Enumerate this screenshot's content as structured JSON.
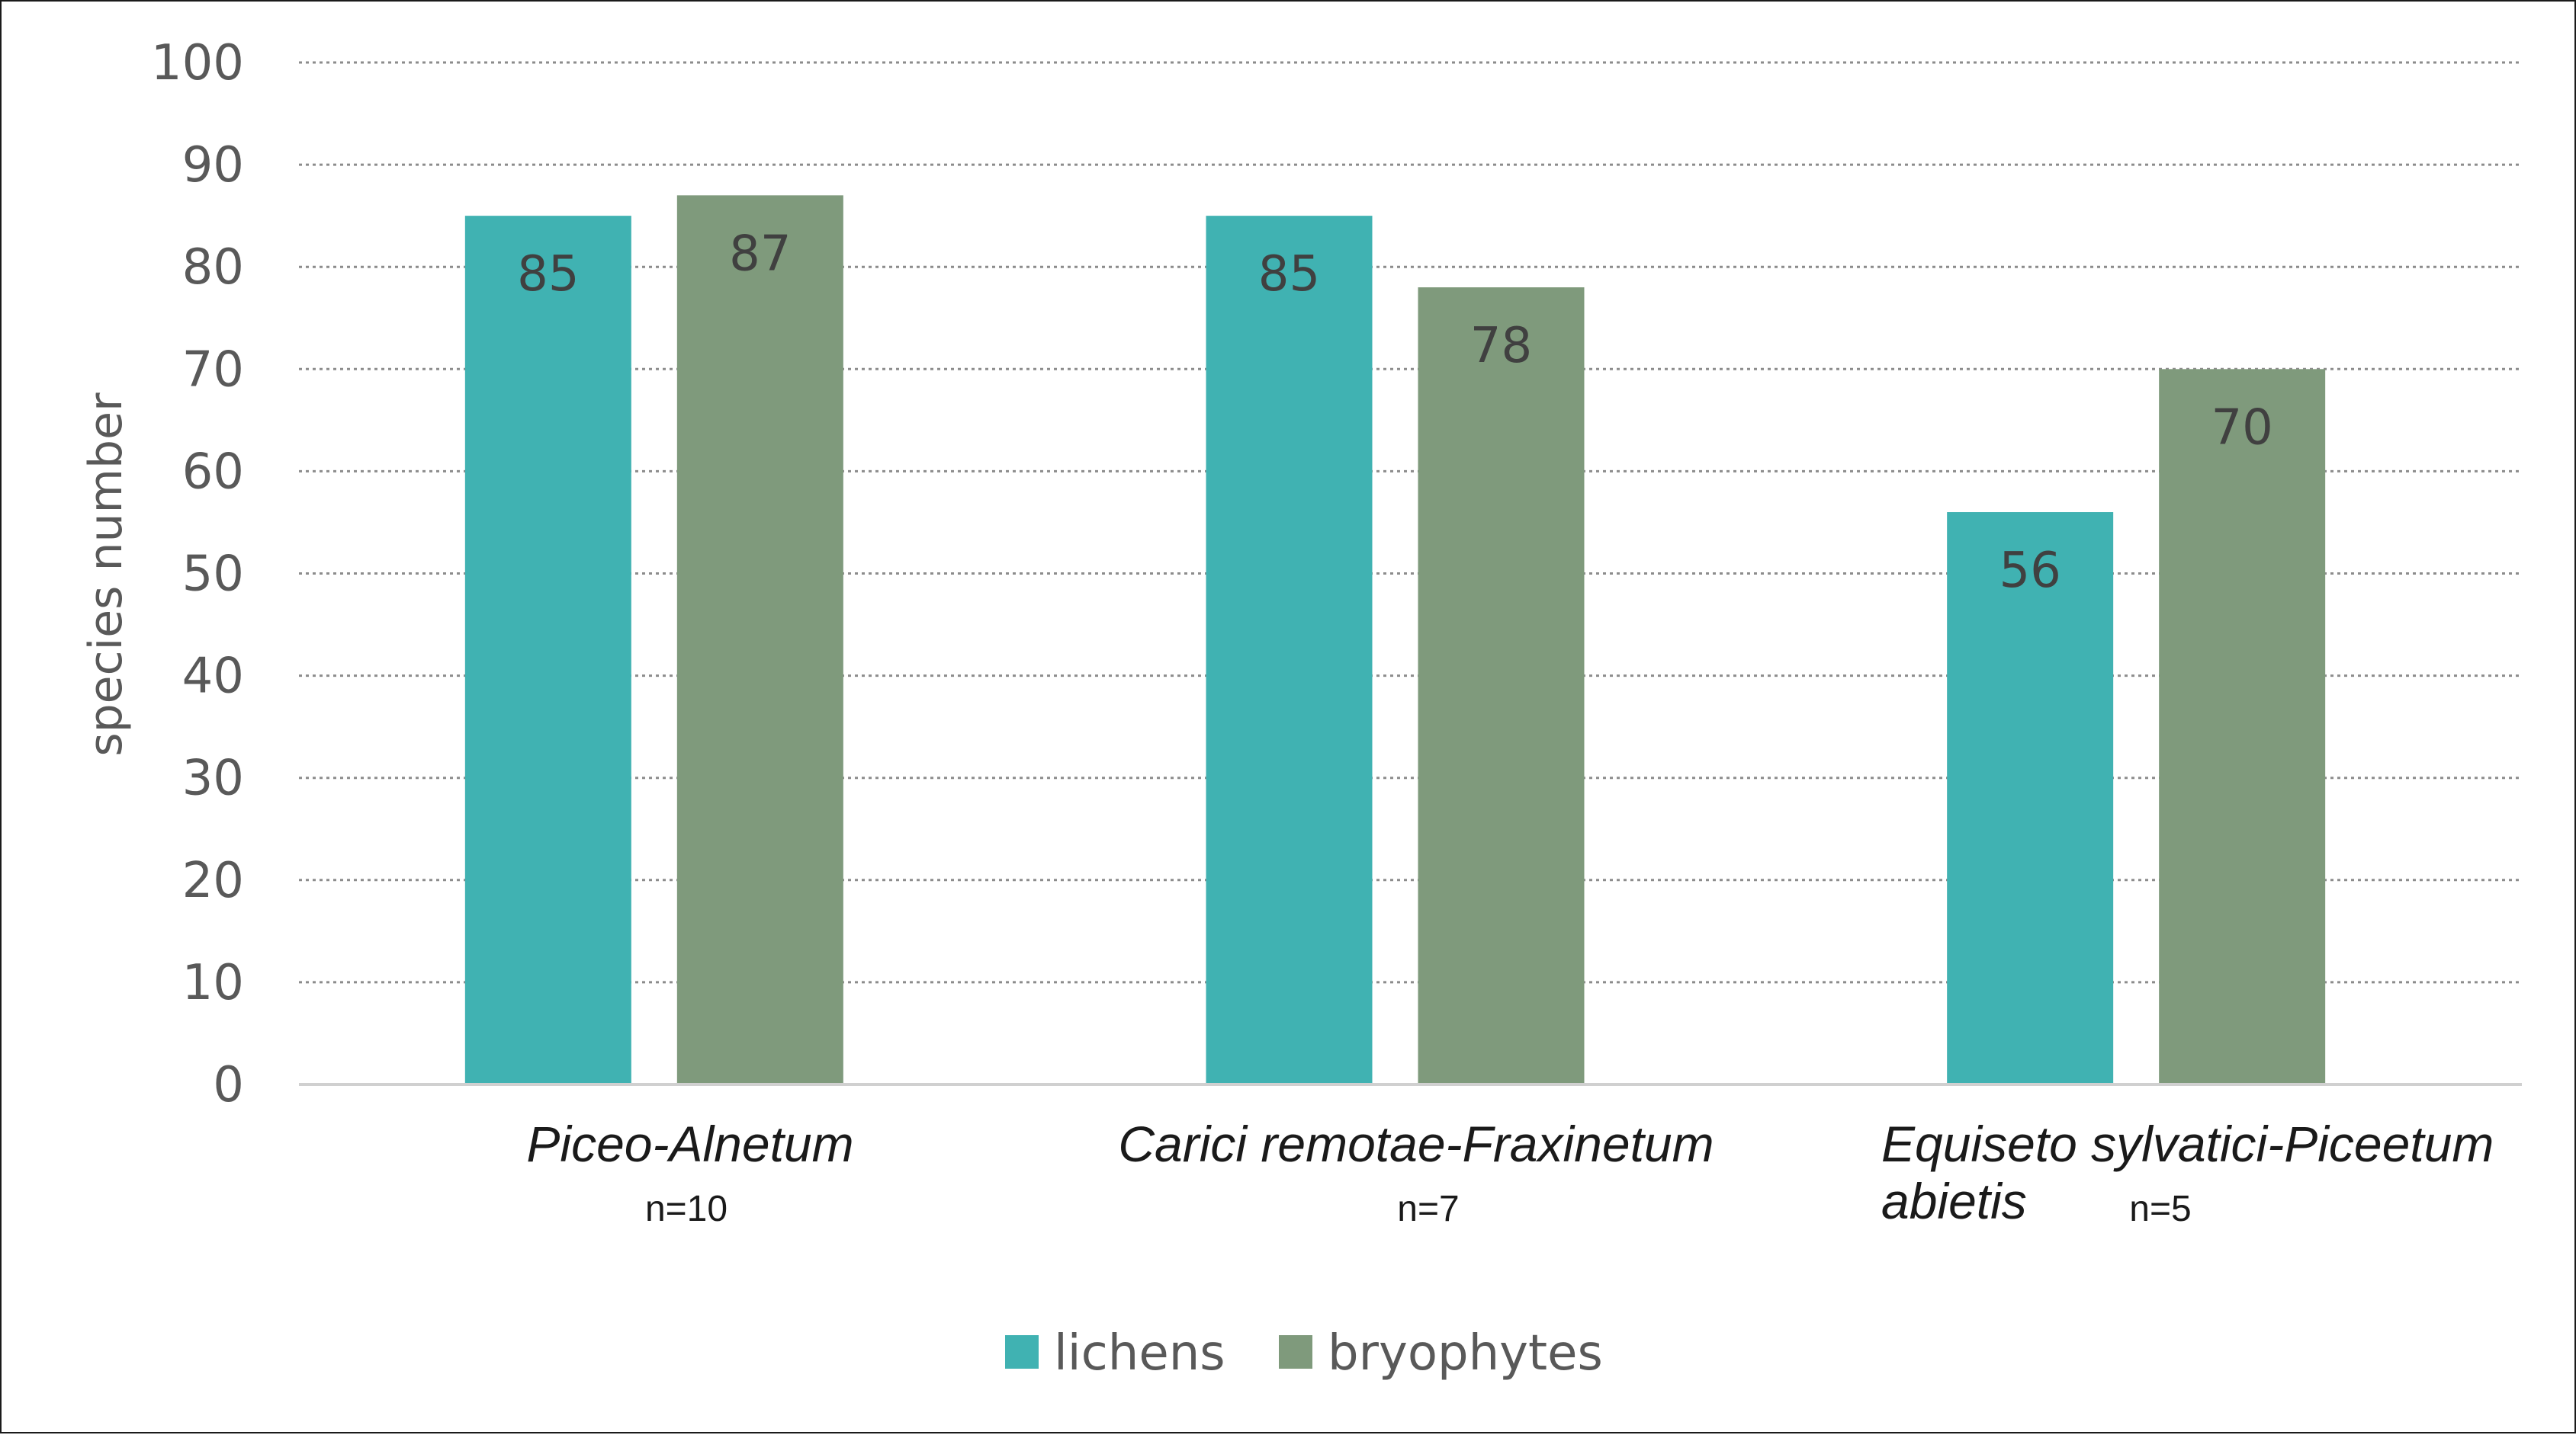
{
  "chart_data": {
    "type": "bar",
    "title": "",
    "xlabel": "",
    "ylabel": "species number",
    "ylim": [
      0,
      100
    ],
    "yticks": [
      0,
      10,
      20,
      30,
      40,
      50,
      60,
      70,
      80,
      90,
      100
    ],
    "grid": true,
    "legend_position": "bottom",
    "categories": [
      {
        "name": "Piceo-Alnetum",
        "name_line2": "",
        "n": "n=10"
      },
      {
        "name": "Carici remotae-Fraxinetum",
        "name_line2": "",
        "n": "n=7"
      },
      {
        "name": "Equiseto sylvatici-Piceetum",
        "name_line2": "abietis",
        "n": "n=5"
      }
    ],
    "series": [
      {
        "name": "lichens",
        "color": "#40b2b2",
        "values": [
          85,
          85,
          56
        ]
      },
      {
        "name": "bryophytes",
        "color": "#7f9a7c",
        "values": [
          87,
          78,
          70
        ]
      }
    ],
    "data_labels": true
  }
}
